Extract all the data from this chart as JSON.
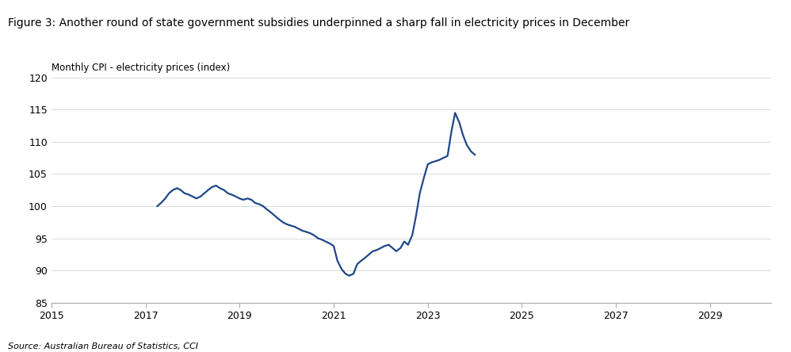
{
  "title": "Figure 3: Another round of state government subsidies underpinned a sharp fall in electricity prices in December",
  "ylabel": "Monthly CPI - electricity prices (index)",
  "source": "Source: Australian Bureau of Statistics, CCI",
  "line_color": "#1F4788",
  "background_color": "#ffffff",
  "title_bg_color": "#D6D6D6",
  "xlim": [
    2015.0,
    2030.3
  ],
  "ylim": [
    85,
    120
  ],
  "xticks": [
    2015,
    2017,
    2019,
    2021,
    2023,
    2025,
    2027,
    2029
  ],
  "yticks": [
    85,
    90,
    95,
    100,
    105,
    110,
    115,
    120
  ],
  "data": {
    "dates": [
      2017.25,
      2017.33,
      2017.42,
      2017.5,
      2017.58,
      2017.67,
      2017.75,
      2017.83,
      2017.92,
      2018.0,
      2018.08,
      2018.17,
      2018.25,
      2018.33,
      2018.42,
      2018.5,
      2018.58,
      2018.67,
      2018.75,
      2018.83,
      2018.92,
      2019.0,
      2019.08,
      2019.17,
      2019.25,
      2019.33,
      2019.42,
      2019.5,
      2019.58,
      2019.67,
      2019.75,
      2019.83,
      2019.92,
      2020.0,
      2020.08,
      2020.17,
      2020.25,
      2020.33,
      2020.42,
      2020.5,
      2020.58,
      2020.67,
      2020.75,
      2020.83,
      2020.92,
      2021.0,
      2021.08,
      2021.17,
      2021.25,
      2021.33,
      2021.42,
      2021.5,
      2021.58,
      2021.67,
      2021.75,
      2021.83,
      2021.92,
      2022.0,
      2022.08,
      2022.17,
      2022.25,
      2022.33,
      2022.42,
      2022.5,
      2022.58,
      2022.67,
      2022.75,
      2022.83,
      2022.92,
      2023.0,
      2023.08,
      2023.17,
      2023.25,
      2023.33,
      2023.42,
      2023.5,
      2023.58,
      2023.67,
      2023.75,
      2023.83,
      2023.92,
      2024.0
    ],
    "values": [
      100.0,
      100.5,
      101.2,
      102.0,
      102.5,
      102.8,
      102.5,
      102.0,
      101.8,
      101.5,
      101.2,
      101.5,
      102.0,
      102.5,
      103.0,
      103.2,
      102.8,
      102.5,
      102.0,
      101.8,
      101.5,
      101.2,
      101.0,
      101.2,
      101.0,
      100.5,
      100.3,
      100.0,
      99.5,
      99.0,
      98.5,
      98.0,
      97.5,
      97.2,
      97.0,
      96.8,
      96.5,
      96.2,
      96.0,
      95.8,
      95.5,
      95.0,
      94.8,
      94.5,
      94.2,
      93.8,
      91.5,
      90.2,
      89.5,
      89.2,
      89.5,
      91.0,
      91.5,
      92.0,
      92.5,
      93.0,
      93.2,
      93.5,
      93.8,
      94.0,
      93.5,
      93.0,
      93.5,
      94.5,
      94.0,
      95.5,
      98.5,
      102.0,
      104.5,
      106.5,
      106.8,
      107.0,
      107.2,
      107.5,
      107.8,
      111.5,
      114.5,
      113.0,
      111.0,
      109.5,
      108.5,
      108.0
    ]
  }
}
